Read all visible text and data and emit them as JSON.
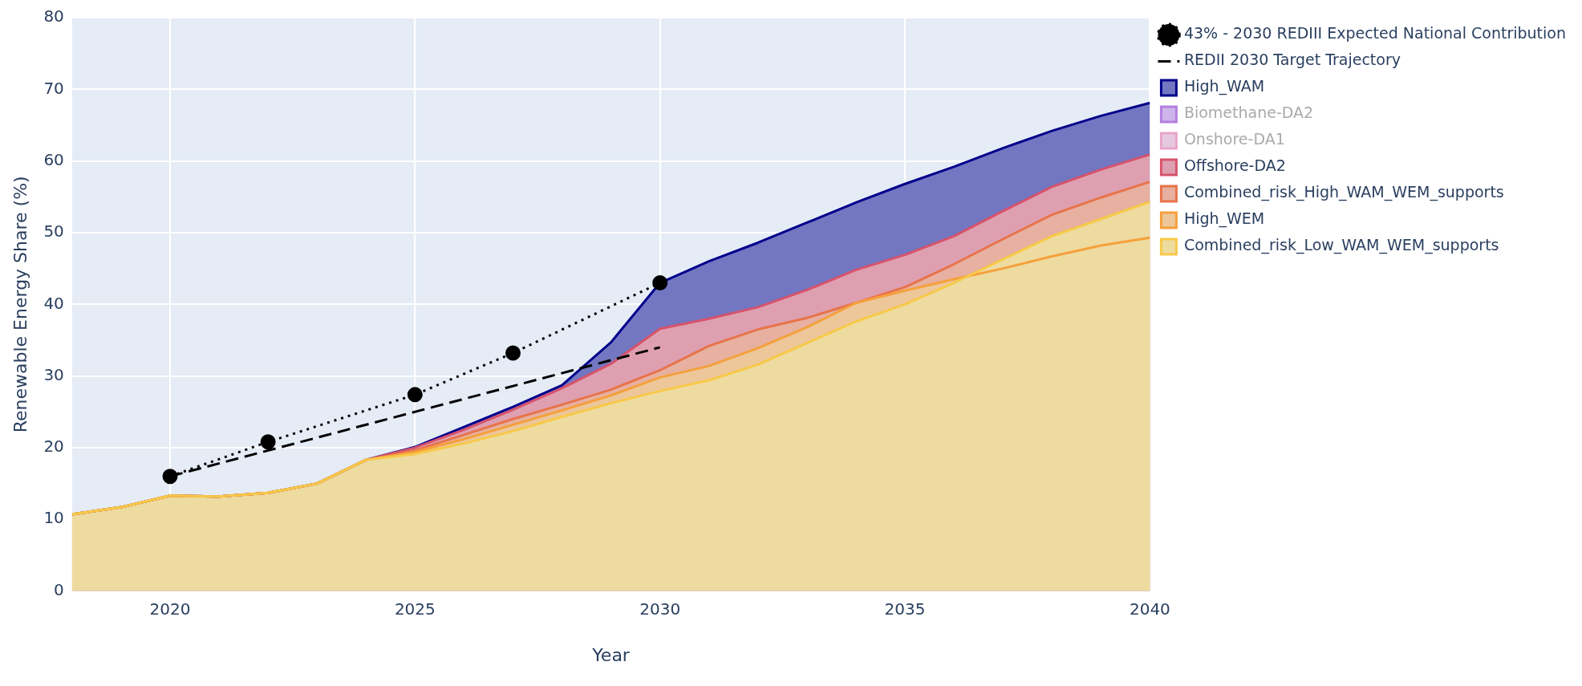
{
  "chart_data": {
    "type": "area",
    "xlabel": "Year",
    "ylabel": "Renewable Energy Share (%)",
    "xlim": [
      2018,
      2040
    ],
    "xticks": [
      2020,
      2025,
      2030,
      2035,
      2040
    ],
    "ylim": [
      0,
      80
    ],
    "yticks": [
      0,
      10,
      20,
      30,
      40,
      50,
      60,
      70,
      80
    ],
    "grid": true,
    "legend": "top right",
    "x": [
      2018,
      2019,
      2020,
      2021,
      2022,
      2023,
      2024,
      2025,
      2026,
      2027,
      2028,
      2029,
      2030,
      2031,
      2032,
      2033,
      2034,
      2035,
      2036,
      2037,
      2038,
      2039,
      2040
    ],
    "series": [
      {
        "name": "43% - 2030 REDIII Expected National Contribution",
        "type": "line",
        "color": "#000000",
        "line_style": "dotted",
        "marker": "circle",
        "x": [
          2020,
          2022,
          2025,
          2027,
          2030
        ],
        "values": [
          16,
          20.8,
          27.4,
          33.2,
          43
        ]
      },
      {
        "name": "REDII 2030 Target Trajectory",
        "type": "line",
        "color": "#000000",
        "line_style": "dashed",
        "marker": "none",
        "x": [
          2020,
          2030
        ],
        "values": [
          16,
          34
        ]
      },
      {
        "name": "High_WAM",
        "color": "#00008b",
        "values": [
          10.7,
          11.7,
          13.3,
          13.2,
          13.7,
          15.0,
          18.3,
          20.1,
          22.9,
          25.7,
          28.7,
          34.7,
          43,
          46,
          48.6,
          51.4,
          54.2,
          56.8,
          59.2,
          61.8,
          64.2,
          66.3,
          68.1
        ]
      },
      {
        "name": "Biomethane-DA2",
        "color": "#b57ee0",
        "values": [
          null,
          null,
          null,
          null,
          null,
          null,
          null,
          null,
          null,
          null,
          null,
          null,
          null,
          null,
          null,
          null,
          null,
          null,
          null,
          null,
          null,
          null,
          null
        ]
      },
      {
        "name": "Onshore-DA1",
        "color": "#e8a5c8",
        "values": [
          null,
          null,
          null,
          null,
          null,
          null,
          null,
          null,
          null,
          null,
          null,
          null,
          null,
          null,
          null,
          null,
          null,
          null,
          null,
          null,
          null,
          null,
          null
        ]
      },
      {
        "name": "Offshore-DA2",
        "color": "#d6536b",
        "values": [
          10.7,
          11.7,
          13.3,
          13.2,
          13.7,
          15.0,
          18.3,
          20,
          22.5,
          25.3,
          28.3,
          31.7,
          36.6,
          38,
          39.6,
          42,
          44.8,
          46.9,
          49.5,
          53,
          56.4,
          58.8,
          60.9
        ]
      },
      {
        "name": "Combined_risk_High_WAM_WEM_supports",
        "color": "#e8734a",
        "values": [
          10.7,
          11.7,
          13.3,
          13.2,
          13.7,
          15.0,
          18.3,
          19.6,
          21.8,
          24,
          26,
          28.1,
          30.8,
          34.2,
          36.5,
          38.1,
          40.2,
          42.4,
          45.6,
          49.1,
          52.5,
          54.9,
          57.1
        ]
      },
      {
        "name": "High_WEM",
        "color": "#f5a03c",
        "values": [
          10.7,
          11.7,
          13.3,
          13.2,
          13.7,
          15.0,
          18.3,
          19.4,
          21.2,
          23.2,
          25.2,
          27.3,
          29.8,
          31.4,
          33.9,
          36.8,
          40.2,
          41.9,
          43.5,
          45,
          46.7,
          48.2,
          49.3
        ]
      },
      {
        "name": "Combined_risk_Low_WAM_WEM_supports",
        "color": "#f7c948",
        "values": [
          10.7,
          11.7,
          13.3,
          13.2,
          13.7,
          15.0,
          18.3,
          19.1,
          20.6,
          22.3,
          24.3,
          26.2,
          27.9,
          29.4,
          31.6,
          34.6,
          37.6,
          40,
          43,
          46.3,
          49.5,
          51.9,
          54.3
        ]
      }
    ]
  }
}
